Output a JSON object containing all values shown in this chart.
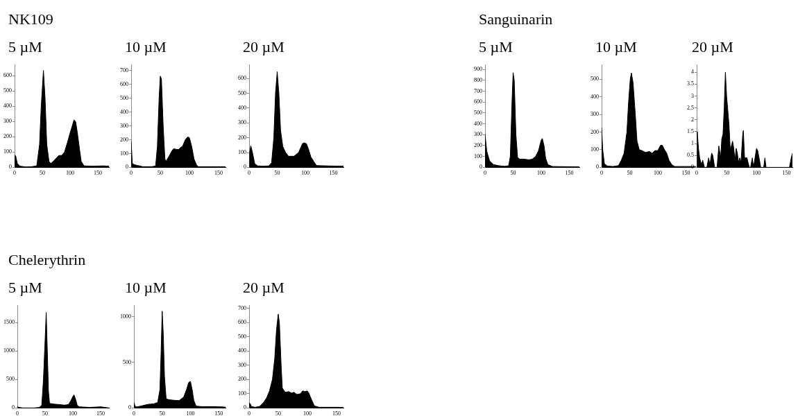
{
  "chart_data": [
    {
      "type": "area",
      "title": "5 µM",
      "annotations": [
        "NK109"
      ],
      "xlim": [
        0,
        170
      ],
      "xticks": [
        0,
        50,
        100,
        150
      ],
      "ylim": [
        0,
        670
      ],
      "yticks": [
        0,
        100,
        200,
        300,
        400,
        500,
        600
      ],
      "legend": false,
      "grid": false,
      "marker": "none",
      "series": [
        {
          "color": "#000000",
          "x": [
            0,
            2,
            5,
            10,
            20,
            30,
            40,
            45,
            48,
            52,
            55,
            58,
            62,
            65,
            70,
            75,
            80,
            85,
            90,
            95,
            100,
            103,
            107,
            110,
            113,
            117,
            120,
            125,
            140,
            160,
            170
          ],
          "values": [
            80,
            75,
            25,
            8,
            3,
            4,
            10,
            150,
            400,
            635,
            450,
            150,
            40,
            25,
            40,
            60,
            78,
            78,
            100,
            160,
            225,
            260,
            310,
            300,
            230,
            120,
            40,
            10,
            8,
            10,
            8
          ]
        }
      ]
    },
    {
      "type": "area",
      "title": "10 µM",
      "xlim": [
        0,
        162
      ],
      "xticks": [
        0,
        50,
        100,
        150
      ],
      "ylim": [
        0,
        740
      ],
      "yticks": [
        0,
        100,
        200,
        300,
        400,
        500,
        600,
        700
      ],
      "legend": false,
      "grid": false,
      "marker": "none",
      "series": [
        {
          "color": "#000000",
          "x": [
            0,
            1,
            2,
            5,
            10,
            20,
            35,
            42,
            45,
            48,
            50,
            52,
            55,
            58,
            60,
            65,
            70,
            73,
            78,
            82,
            85,
            88,
            93,
            97,
            100,
            104,
            108,
            112,
            115,
            162
          ],
          "values": [
            190,
            190,
            30,
            20,
            15,
            5,
            5,
            10,
            150,
            500,
            660,
            640,
            300,
            60,
            45,
            80,
            120,
            135,
            130,
            130,
            145,
            150,
            200,
            220,
            215,
            150,
            60,
            20,
            5,
            5
          ]
        }
      ]
    },
    {
      "type": "area",
      "title": "20 µM",
      "xlim": [
        0,
        168
      ],
      "xticks": [
        0,
        50,
        100,
        150
      ],
      "ylim": [
        0,
        690
      ],
      "yticks": [
        0,
        100,
        200,
        300,
        400,
        500,
        600
      ],
      "legend": false,
      "grid": false,
      "marker": "none",
      "series": [
        {
          "color": "#000000",
          "x": [
            0,
            1,
            3,
            6,
            10,
            15,
            25,
            35,
            40,
            44,
            47,
            50,
            53,
            56,
            60,
            65,
            70,
            80,
            88,
            95,
            98,
            102,
            106,
            110,
            115,
            120,
            140,
            168
          ],
          "values": [
            0,
            100,
            145,
            100,
            25,
            10,
            8,
            10,
            30,
            200,
            500,
            645,
            500,
            250,
            140,
            100,
            75,
            75,
            100,
            160,
            165,
            160,
            120,
            70,
            40,
            12,
            10,
            8
          ]
        }
      ]
    },
    {
      "type": "area",
      "title": "5 µM",
      "annotations": [
        "Sanguinarin"
      ],
      "xlim": [
        0,
        168
      ],
      "xticks": [
        0,
        50,
        100,
        150
      ],
      "ylim": [
        0,
        940
      ],
      "yticks": [
        0,
        100,
        200,
        300,
        400,
        500,
        600,
        700,
        800,
        900
      ],
      "legend": false,
      "grid": false,
      "marker": "none",
      "series": [
        {
          "color": "#000000",
          "x": [
            0,
            3,
            8,
            15,
            25,
            35,
            42,
            45,
            48,
            50,
            52,
            55,
            58,
            62,
            70,
            78,
            84,
            90,
            95,
            100,
            102,
            105,
            108,
            112,
            120,
            168
          ],
          "values": [
            305,
            150,
            60,
            25,
            15,
            10,
            15,
            100,
            600,
            870,
            800,
            300,
            90,
            75,
            75,
            70,
            75,
            100,
            150,
            250,
            265,
            200,
            80,
            25,
            8,
            5
          ]
        }
      ]
    },
    {
      "type": "area",
      "title": "10 µM",
      "xlim": [
        0,
        168
      ],
      "xticks": [
        0,
        50,
        100,
        150
      ],
      "ylim": [
        0,
        580
      ],
      "yticks": [
        0,
        100,
        200,
        300,
        400,
        500
      ],
      "legend": false,
      "grid": false,
      "marker": "none",
      "series": [
        {
          "color": "#000000",
          "x": [
            0,
            2,
            5,
            10,
            20,
            30,
            35,
            40,
            45,
            48,
            51,
            53,
            56,
            60,
            63,
            67,
            72,
            78,
            85,
            90,
            95,
            100,
            105,
            108,
            112,
            116,
            120,
            125,
            130,
            168
          ],
          "values": [
            225,
            100,
            20,
            8,
            5,
            10,
            40,
            80,
            200,
            370,
            500,
            535,
            480,
            300,
            150,
            100,
            95,
            85,
            90,
            80,
            95,
            95,
            125,
            125,
            100,
            80,
            40,
            15,
            5,
            5
          ]
        }
      ]
    },
    {
      "type": "area",
      "title": "20 µM",
      "xlim": [
        0,
        160
      ],
      "xticks": [
        0,
        50,
        100,
        150
      ],
      "ylim": [
        0,
        4.3
      ],
      "yticks": [
        0,
        0.5,
        1,
        1.5,
        2,
        2.5,
        3,
        3.5,
        4
      ],
      "legend": false,
      "grid": false,
      "marker": "none",
      "series": [
        {
          "color": "#000000",
          "x": [
            0,
            1,
            3,
            5,
            8,
            10,
            13,
            17,
            20,
            22,
            25,
            27,
            30,
            34,
            37,
            40,
            42,
            44,
            46,
            48,
            50,
            52,
            54,
            56,
            58,
            60,
            62,
            64,
            66,
            68,
            70,
            72,
            74,
            77,
            78,
            80,
            84,
            86,
            88,
            90,
            93,
            95,
            100,
            102,
            105,
            107,
            112,
            114,
            116,
            155,
            158,
            160
          ],
          "values": [
            0,
            1.5,
            0.8,
            0.4,
            0.1,
            0.3,
            0,
            0,
            0.4,
            0.1,
            0.6,
            0.5,
            0,
            0,
            0.9,
            0.4,
            1.2,
            1.4,
            2.5,
            4,
            3,
            2.4,
            1.8,
            0.8,
            0.9,
            1.1,
            0.8,
            0.3,
            0.8,
            0.6,
            0.2,
            0.4,
            0.2,
            1.4,
            1.55,
            0.4,
            0.4,
            0.2,
            0,
            0,
            0.4,
            0,
            0.8,
            0.7,
            0.3,
            0,
            0,
            0.4,
            0,
            0,
            0.4,
            0.6
          ]
        }
      ]
    },
    {
      "type": "area",
      "title": "5 µM",
      "annotations": [
        "Chelerythrin"
      ],
      "xlim": [
        0,
        165
      ],
      "xticks": [
        0,
        50,
        100,
        150
      ],
      "ylim": [
        0,
        1800
      ],
      "yticks": [
        0,
        500,
        1000,
        1500
      ],
      "legend": false,
      "grid": false,
      "marker": "none",
      "series": [
        {
          "color": "#000000",
          "x": [
            0,
            3,
            10,
            30,
            40,
            44,
            47,
            50,
            52,
            54,
            56,
            58,
            65,
            75,
            85,
            92,
            96,
            100,
            102,
            105,
            108,
            112,
            130,
            150,
            165
          ],
          "values": [
            20,
            10,
            0,
            0,
            10,
            50,
            500,
            1200,
            1680,
            1000,
            300,
            80,
            70,
            60,
            50,
            60,
            120,
            200,
            230,
            150,
            40,
            20,
            10,
            20,
            0
          ]
        }
      ]
    },
    {
      "type": "area",
      "title": "10 µM",
      "xlim": [
        0,
        162
      ],
      "xticks": [
        0,
        50,
        100,
        150
      ],
      "ylim": [
        0,
        1120
      ],
      "yticks": [
        0,
        500,
        1000
      ],
      "legend": false,
      "grid": false,
      "marker": "none",
      "series": [
        {
          "color": "#000000",
          "x": [
            0,
            2,
            5,
            15,
            25,
            35,
            42,
            46,
            48,
            50,
            52,
            54,
            57,
            62,
            70,
            80,
            88,
            93,
            97,
            100,
            103,
            106,
            110,
            120,
            140,
            162
          ],
          "values": [
            60,
            20,
            10,
            25,
            40,
            45,
            60,
            200,
            600,
            1060,
            800,
            350,
            100,
            90,
            85,
            80,
            120,
            200,
            280,
            290,
            200,
            80,
            20,
            15,
            15,
            10
          ]
        }
      ]
    },
    {
      "type": "area",
      "title": "20 µM",
      "xlim": [
        0,
        162
      ],
      "xticks": [
        0,
        50,
        100,
        150
      ],
      "ylim": [
        0,
        720
      ],
      "yticks": [
        0,
        100,
        200,
        300,
        400,
        500,
        600,
        700
      ],
      "legend": false,
      "grid": false,
      "marker": "none",
      "series": [
        {
          "color": "#000000",
          "x": [
            0,
            2,
            4,
            10,
            18,
            25,
            30,
            35,
            40,
            44,
            47,
            50,
            52,
            55,
            57,
            62,
            68,
            73,
            77,
            82,
            88,
            92,
            96,
            100,
            103,
            108,
            112,
            120,
            150,
            162
          ],
          "values": [
            35,
            30,
            10,
            5,
            10,
            40,
            70,
            120,
            200,
            350,
            550,
            660,
            600,
            300,
            140,
            110,
            115,
            105,
            110,
            95,
            100,
            120,
            115,
            120,
            100,
            50,
            15,
            5,
            5,
            3
          ]
        }
      ]
    }
  ]
}
